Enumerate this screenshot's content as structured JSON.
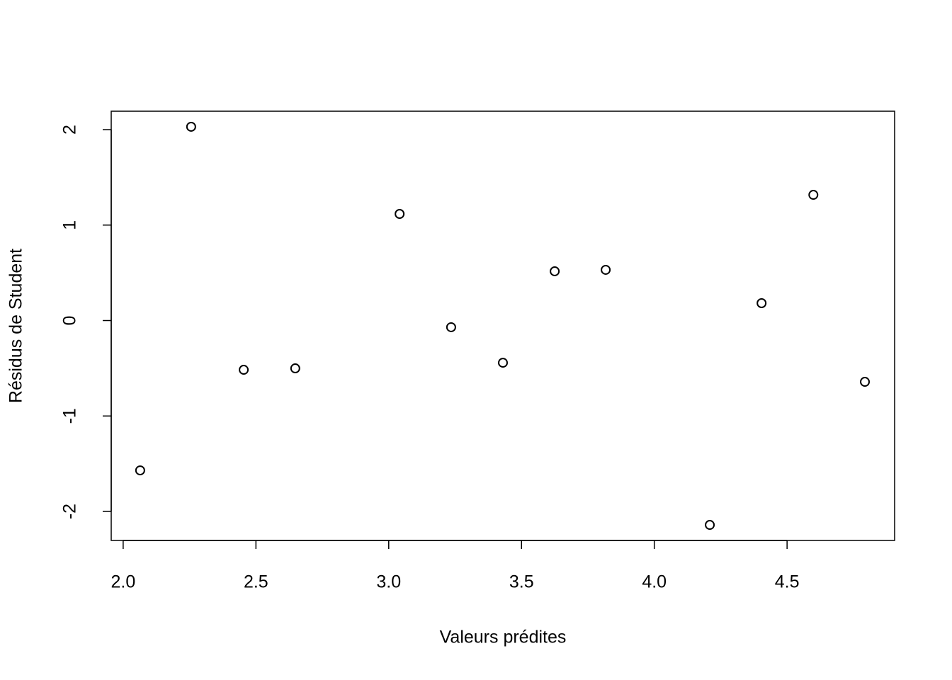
{
  "chart_data": {
    "type": "scatter",
    "x_label": "Valeurs prédites",
    "y_label": "Résidus de Student",
    "x": [
      2.064,
      2.256,
      2.454,
      2.648,
      3.041,
      3.235,
      3.43,
      3.625,
      3.817,
      4.209,
      4.404,
      4.599,
      4.793
    ],
    "values": [
      -1.57,
      2.03,
      -0.516,
      -0.501,
      1.117,
      -0.07,
      -0.442,
      0.516,
      0.531,
      -2.141,
      0.182,
      1.317,
      -0.642
    ],
    "color": "#000000",
    "xlim": [
      1.955,
      4.905
    ],
    "ylim": [
      -2.304,
      2.193
    ],
    "xticks": [
      {
        "value": 2,
        "label": "2.0"
      },
      2.5,
      {
        "value": 3,
        "label": "3.0"
      },
      3.5,
      {
        "value": 4,
        "label": "4.0"
      },
      4.5
    ],
    "yticks": [
      -2,
      -1,
      0,
      1,
      2
    ],
    "grid": false
  }
}
